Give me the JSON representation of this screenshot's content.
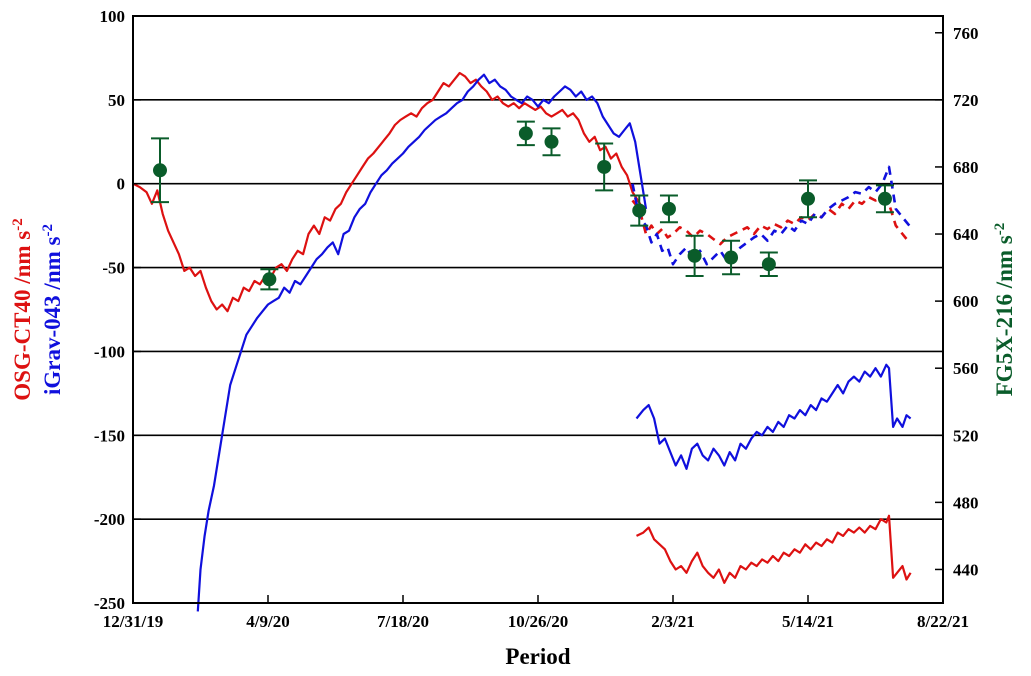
{
  "chart_data": {
    "type": "line",
    "title": "",
    "xlabel": "Period",
    "ylabel_left": [
      {
        "text": "OSG-CT40 /nm s",
        "sup": "-2",
        "color": "#dd1111"
      },
      {
        "text": "iGrav-043 /nm s",
        "sup": "-2",
        "color": "#1010dd"
      }
    ],
    "ylabel_right": {
      "text": "FG5X-216 /nm s",
      "sup": "-2",
      "color": "#0a5c2a"
    },
    "x_ticks": [
      "12/31/19",
      "4/9/20",
      "7/18/20",
      "10/26/20",
      "2/3/21",
      "5/14/21",
      "8/22/21"
    ],
    "x_tick_days": [
      0,
      100,
      200,
      300,
      400,
      500,
      600
    ],
    "xlim": [
      0,
      600
    ],
    "ylim_left": [
      -250,
      100
    ],
    "y_ticks_left": [
      100,
      50,
      0,
      -50,
      -100,
      -150,
      -200,
      -250
    ],
    "ylim_right": [
      420,
      770
    ],
    "y_ticks_right": [
      440,
      480,
      520,
      560,
      600,
      640,
      680,
      720,
      760
    ],
    "gridlines_y": [
      50,
      0,
      -50,
      -100,
      -150,
      -200
    ],
    "colors": {
      "red": "#dd1111",
      "blue": "#1010dd",
      "green": "#0a5c2a"
    },
    "series": [
      {
        "name": "OSG-CT40",
        "color": "#dd1111",
        "style": "solid",
        "x": [
          0,
          5,
          10,
          14,
          18,
          22,
          26,
          30,
          34,
          38,
          42,
          46,
          50,
          54,
          58,
          62,
          66,
          70,
          74,
          78,
          82,
          86,
          90,
          94,
          98,
          102,
          106,
          110,
          114,
          118,
          122,
          126,
          130,
          134,
          138,
          142,
          146,
          150,
          154,
          158,
          162,
          166,
          170,
          174,
          178,
          182,
          186,
          190,
          194,
          198,
          202,
          206,
          210,
          214,
          218,
          222,
          226,
          230,
          234,
          238,
          242,
          246,
          250,
          254,
          258,
          262,
          266,
          270,
          274,
          278,
          282,
          286,
          290,
          294,
          298,
          302,
          306,
          310,
          314,
          318,
          322,
          326,
          330,
          334,
          338,
          342,
          346,
          350,
          354,
          358,
          362,
          366,
          370,
          374,
          378
        ],
        "y": [
          0,
          -2,
          -5,
          -12,
          -4,
          -18,
          -28,
          -35,
          -42,
          -52,
          -50,
          -55,
          -52,
          -62,
          -70,
          -75,
          -72,
          -76,
          -68,
          -70,
          -62,
          -64,
          -58,
          -60,
          -55,
          -56,
          -50,
          -48,
          -52,
          -45,
          -40,
          -42,
          -30,
          -25,
          -30,
          -20,
          -22,
          -15,
          -12,
          -5,
          0,
          5,
          10,
          15,
          18,
          22,
          26,
          30,
          35,
          38,
          40,
          42,
          40,
          45,
          48,
          50,
          55,
          60,
          58,
          62,
          66,
          64,
          60,
          62,
          58,
          55,
          50,
          52,
          48,
          46,
          48,
          45,
          48,
          46,
          44,
          46,
          42,
          40,
          42,
          44,
          40,
          42,
          38,
          30,
          25,
          28,
          20,
          22,
          15,
          18,
          10,
          5,
          -5,
          -10,
          -15
        ]
      },
      {
        "name": "iGrav-043",
        "color": "#1010dd",
        "style": "solid",
        "x": [
          48,
          50,
          53,
          56,
          60,
          64,
          68,
          72,
          76,
          80,
          84,
          88,
          92,
          96,
          100,
          104,
          108,
          112,
          116,
          120,
          124,
          128,
          132,
          136,
          140,
          144,
          148,
          152,
          156,
          160,
          164,
          168,
          172,
          176,
          180,
          184,
          188,
          192,
          196,
          200,
          204,
          208,
          212,
          216,
          220,
          224,
          228,
          232,
          236,
          240,
          244,
          248,
          252,
          256,
          260,
          264,
          268,
          272,
          276,
          280,
          284,
          288,
          292,
          296,
          300,
          304,
          308,
          312,
          316,
          320,
          324,
          328,
          332,
          336,
          340,
          344,
          348,
          352,
          356,
          360,
          364,
          368,
          372,
          376,
          380
        ],
        "y": [
          -255,
          -230,
          -210,
          -195,
          -180,
          -160,
          -140,
          -120,
          -110,
          -100,
          -90,
          -85,
          -80,
          -76,
          -72,
          -70,
          -68,
          -62,
          -65,
          -58,
          -60,
          -55,
          -50,
          -45,
          -42,
          -38,
          -35,
          -42,
          -30,
          -28,
          -20,
          -15,
          -12,
          -5,
          0,
          5,
          8,
          12,
          15,
          18,
          22,
          25,
          28,
          32,
          35,
          38,
          40,
          42,
          45,
          48,
          50,
          55,
          58,
          62,
          65,
          60,
          62,
          58,
          56,
          52,
          50,
          48,
          52,
          50,
          46,
          50,
          48,
          52,
          55,
          58,
          56,
          52,
          55,
          50,
          52,
          48,
          40,
          35,
          30,
          28,
          32,
          36,
          25,
          5,
          -15
        ]
      },
      {
        "name": "OSG-CT40 (dashed)",
        "color": "#dd1111",
        "style": "dashed",
        "x": [
          370,
          375,
          380,
          384,
          388,
          392,
          396,
          400,
          405,
          410,
          415,
          420,
          425,
          430,
          435,
          440,
          445,
          450,
          455,
          460,
          465,
          470,
          475,
          480,
          485,
          490,
          495,
          500,
          505,
          510,
          515,
          520,
          525,
          530,
          535,
          540,
          545,
          550,
          555,
          560,
          565,
          570,
          575
        ],
        "y": [
          -10,
          -15,
          -30,
          -25,
          -30,
          -27,
          -32,
          -30,
          -26,
          -28,
          -32,
          -28,
          -30,
          -33,
          -36,
          -32,
          -30,
          -28,
          -26,
          -30,
          -25,
          -27,
          -24,
          -26,
          -22,
          -24,
          -20,
          -22,
          -18,
          -20,
          -15,
          -18,
          -12,
          -15,
          -10,
          -12,
          -8,
          -10,
          -8,
          -12,
          -25,
          -30,
          -35
        ]
      },
      {
        "name": "iGrav-043 (dashed)",
        "color": "#1010dd",
        "style": "dashed",
        "x": [
          370,
          375,
          380,
          384,
          388,
          392,
          396,
          400,
          405,
          410,
          415,
          420,
          425,
          430,
          435,
          440,
          445,
          450,
          455,
          460,
          465,
          470,
          475,
          480,
          485,
          490,
          495,
          500,
          505,
          510,
          515,
          520,
          525,
          530,
          535,
          540,
          545,
          550,
          555,
          560,
          565,
          570,
          575
        ],
        "y": [
          0,
          -20,
          -25,
          -35,
          -30,
          -40,
          -38,
          -48,
          -42,
          -38,
          -45,
          -40,
          -48,
          -44,
          -40,
          -46,
          -42,
          -38,
          -35,
          -32,
          -30,
          -34,
          -28,
          -30,
          -25,
          -28,
          -22,
          -24,
          -18,
          -20,
          -15,
          -12,
          -10,
          -8,
          -5,
          -6,
          -2,
          -5,
          0,
          10,
          -15,
          -20,
          -25
        ]
      },
      {
        "name": "iGrav-043 (lower)",
        "color": "#1010dd",
        "style": "solid",
        "x": [
          373,
          378,
          382,
          386,
          390,
          394,
          398,
          402,
          406,
          410,
          414,
          418,
          422,
          426,
          430,
          434,
          438,
          442,
          446,
          450,
          454,
          458,
          462,
          466,
          470,
          474,
          478,
          482,
          486,
          490,
          494,
          498,
          502,
          506,
          510,
          514,
          518,
          522,
          526,
          530,
          534,
          538,
          542,
          546,
          550,
          554,
          558,
          560,
          563,
          566,
          570,
          573,
          576
        ],
        "y": [
          -140,
          -135,
          -132,
          -140,
          -155,
          -152,
          -160,
          -168,
          -162,
          -170,
          -158,
          -155,
          -162,
          -165,
          -158,
          -162,
          -168,
          -160,
          -165,
          -155,
          -158,
          -152,
          -148,
          -150,
          -145,
          -148,
          -142,
          -145,
          -138,
          -140,
          -135,
          -138,
          -132,
          -135,
          -128,
          -130,
          -125,
          -120,
          -125,
          -118,
          -115,
          -118,
          -112,
          -115,
          -110,
          -115,
          -108,
          -110,
          -145,
          -140,
          -145,
          -138,
          -140
        ]
      },
      {
        "name": "OSG-CT40 (lower)",
        "color": "#dd1111",
        "style": "solid",
        "x": [
          373,
          378,
          382,
          386,
          390,
          394,
          398,
          402,
          406,
          410,
          414,
          418,
          422,
          426,
          430,
          434,
          438,
          442,
          446,
          450,
          454,
          458,
          462,
          466,
          470,
          474,
          478,
          482,
          486,
          490,
          494,
          498,
          502,
          506,
          510,
          514,
          518,
          522,
          526,
          530,
          534,
          538,
          542,
          546,
          550,
          554,
          558,
          560,
          563,
          566,
          570,
          573,
          576
        ],
        "y": [
          -210,
          -208,
          -205,
          -212,
          -215,
          -218,
          -225,
          -230,
          -228,
          -232,
          -225,
          -220,
          -228,
          -232,
          -235,
          -230,
          -238,
          -232,
          -235,
          -228,
          -230,
          -226,
          -228,
          -224,
          -226,
          -222,
          -225,
          -220,
          -222,
          -218,
          -220,
          -215,
          -218,
          -214,
          -216,
          -212,
          -214,
          -208,
          -210,
          -206,
          -208,
          -205,
          -208,
          -204,
          -206,
          -200,
          -202,
          -198,
          -235,
          -232,
          -228,
          -236,
          -232
        ]
      }
    ],
    "points": {
      "name": "FG5X-216",
      "color": "#0a5c2a",
      "x": [
        20,
        101,
        291,
        310,
        349,
        375,
        397,
        416,
        443,
        471,
        500,
        557
      ],
      "y": [
        678,
        613,
        700,
        695,
        680,
        654,
        655,
        627,
        626,
        622,
        661,
        661
      ],
      "err": [
        19,
        6,
        7,
        8,
        14,
        9,
        8,
        12,
        10,
        7,
        11,
        8
      ]
    }
  }
}
